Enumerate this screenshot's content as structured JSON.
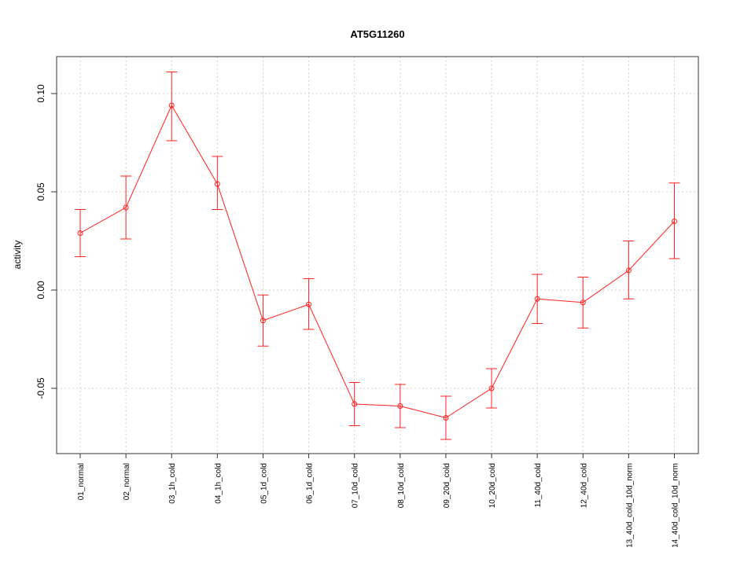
{
  "chart_data": {
    "type": "line",
    "title": "AT5G11260",
    "xlabel": "",
    "ylabel": "activity",
    "ylim": [
      -0.083,
      0.12
    ],
    "yticks": [
      -0.05,
      0.0,
      0.05,
      0.1
    ],
    "ytick_labels": [
      "-0.05",
      "0.00",
      "0.05",
      "0.10"
    ],
    "categories": [
      "01_normal",
      "02_normal",
      "03_1h_cold",
      "04_1h_cold",
      "05_1d_cold",
      "06_1d_cold",
      "07_10d_cold",
      "08_10d_cold",
      "09_20d_cold",
      "10_20d_cold",
      "11_40d_cold",
      "12_40d_cold",
      "13_40d_cold_10d_norm",
      "14_40d_cold_10d_norm"
    ],
    "series": [
      {
        "values": [
          0.029,
          0.042,
          0.094,
          0.054,
          -0.0155,
          -0.0073,
          -0.058,
          -0.059,
          -0.065,
          -0.05,
          -0.0045,
          -0.0063,
          0.01,
          0.035
        ],
        "lower": [
          0.017,
          0.026,
          0.076,
          0.041,
          -0.0285,
          -0.02,
          -0.069,
          -0.07,
          -0.076,
          -0.06,
          -0.017,
          -0.0193,
          -0.0045,
          0.016
        ],
        "upper": [
          0.041,
          0.058,
          0.111,
          0.068,
          -0.0025,
          0.0058,
          -0.047,
          -0.048,
          -0.054,
          -0.04,
          0.008,
          0.0066,
          0.025,
          0.0545
        ],
        "color": "#ff2020"
      }
    ],
    "grid": true,
    "legend": "none"
  }
}
